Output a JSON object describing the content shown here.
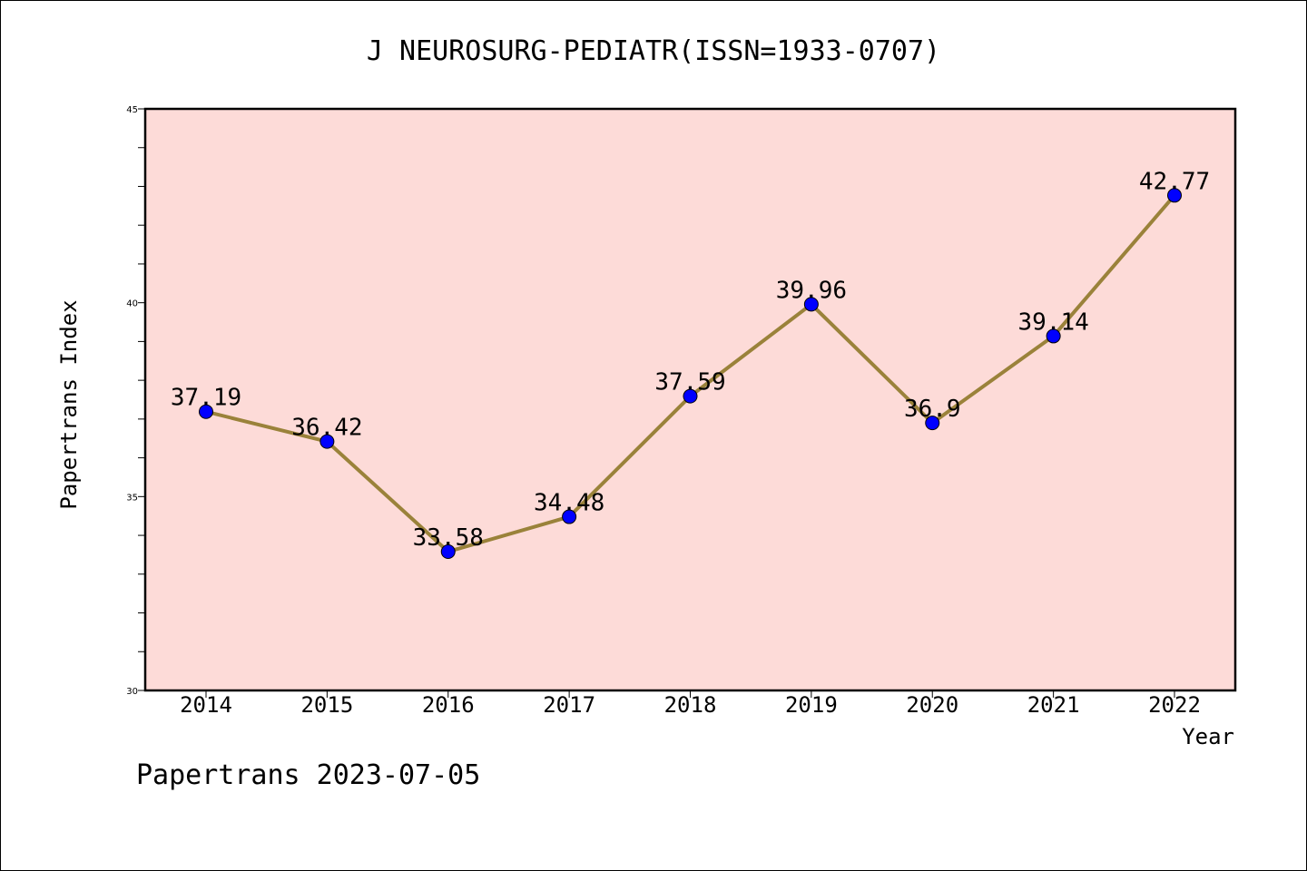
{
  "chart_data": {
    "type": "line",
    "title": "J NEUROSURG-PEDIATR(ISSN=1933-0707)",
    "xlabel": "Year",
    "ylabel": "Papertrans Index",
    "categories": [
      "2014",
      "2015",
      "2016",
      "2017",
      "2018",
      "2019",
      "2020",
      "2021",
      "2022"
    ],
    "series": [
      {
        "values": [
          37.19,
          36.42,
          33.58,
          34.48,
          37.59,
          39.96,
          36.9,
          39.14,
          42.77
        ],
        "data_labels": [
          "37.19",
          "36.42",
          "33.58",
          "34.48",
          "37.59",
          "39.96",
          "36.9",
          "39.14",
          "42.77"
        ]
      }
    ],
    "ylim": [
      30,
      45
    ],
    "y_ticks": [
      "30",
      "35",
      "40",
      "45"
    ],
    "grid": false,
    "colors": {
      "plot_background": "#fddbd8",
      "line": "#9a823a",
      "marker": "#0000ff"
    }
  },
  "footer": {
    "text": "Papertrans 2023-07-05"
  }
}
